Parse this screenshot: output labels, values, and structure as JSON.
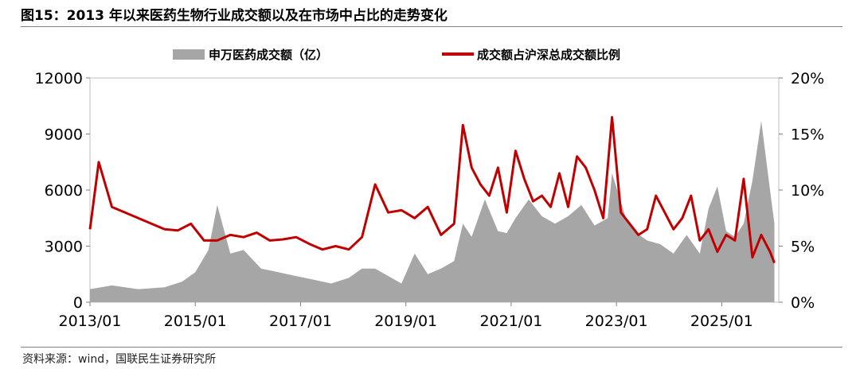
{
  "header": {
    "title": "图15：2013 年以来医药生物行业成交额以及在市场中占比的走势变化"
  },
  "footer": {
    "source": "资料来源：wind，国联民生证券研究所"
  },
  "chart_data": {
    "type": "bar+line",
    "title": "图15：2013 年以来医药生物行业成交额以及在市场中占比的走势变化",
    "legend_position": "top",
    "x_tick_labels": [
      "2013/01",
      "2015/01",
      "2017/01",
      "2019/01",
      "2021/01",
      "2023/01",
      "2025/01"
    ],
    "x_range": [
      "2013/01",
      "2026/02"
    ],
    "y_left": {
      "ticks": [
        "0",
        "3000",
        "6000",
        "9000",
        "12000"
      ],
      "range": [
        0,
        12000
      ]
    },
    "y_right": {
      "ticks": [
        "0%",
        "5%",
        "10%",
        "15%",
        "20%"
      ],
      "range": [
        0,
        20
      ]
    },
    "grid": false,
    "series": [
      {
        "name": "申万医药成交额（亿）",
        "kind": "area",
        "axis": "left",
        "color": "#a6a6a6",
        "x": [
          "2013/01",
          "2013/06",
          "2013/12",
          "2014/06",
          "2014/10",
          "2015/01",
          "2015/04",
          "2015/06",
          "2015/09",
          "2015/12",
          "2016/04",
          "2016/08",
          "2016/12",
          "2017/04",
          "2017/08",
          "2017/12",
          "2018/03",
          "2018/06",
          "2018/09",
          "2018/12",
          "2019/03",
          "2019/06",
          "2019/09",
          "2019/12",
          "2020/02",
          "2020/04",
          "2020/07",
          "2020/10",
          "2020/12",
          "2021/02",
          "2021/05",
          "2021/08",
          "2021/11",
          "2022/02",
          "2022/05",
          "2022/08",
          "2022/11",
          "2022/12",
          "2023/03",
          "2023/05",
          "2023/08",
          "2023/11",
          "2024/02",
          "2024/05",
          "2024/08",
          "2024/10",
          "2024/12",
          "2025/02",
          "2025/04",
          "2025/06",
          "2025/08",
          "2025/10",
          "2025/12",
          "2026/01"
        ],
        "values": [
          700,
          900,
          700,
          800,
          1100,
          1600,
          2800,
          5200,
          2600,
          2800,
          1800,
          1600,
          1400,
          1200,
          1000,
          1300,
          1800,
          1800,
          1400,
          1000,
          2600,
          1500,
          1800,
          2200,
          4200,
          3500,
          5500,
          3800,
          3700,
          4500,
          5500,
          4600,
          4200,
          4600,
          5200,
          4100,
          4500,
          6900,
          4600,
          3800,
          3300,
          3100,
          2600,
          3600,
          2600,
          5000,
          6200,
          3800,
          3500,
          4200,
          6500,
          9700,
          6000,
          4200
        ]
      },
      {
        "name": "成交额占沪深总成交额比例",
        "kind": "line",
        "axis": "right",
        "color": "#c00000",
        "x": [
          "2013/01",
          "2013/03",
          "2013/06",
          "2013/09",
          "2013/12",
          "2014/03",
          "2014/06",
          "2014/09",
          "2014/12",
          "2015/03",
          "2015/06",
          "2015/09",
          "2015/12",
          "2016/03",
          "2016/06",
          "2016/09",
          "2016/12",
          "2017/03",
          "2017/06",
          "2017/09",
          "2017/12",
          "2018/03",
          "2018/06",
          "2018/09",
          "2018/12",
          "2019/03",
          "2019/06",
          "2019/09",
          "2019/12",
          "2020/02",
          "2020/04",
          "2020/06",
          "2020/08",
          "2020/10",
          "2020/12",
          "2021/02",
          "2021/04",
          "2021/06",
          "2021/08",
          "2021/10",
          "2021/12",
          "2022/02",
          "2022/04",
          "2022/06",
          "2022/08",
          "2022/10",
          "2022/12",
          "2023/02",
          "2023/04",
          "2023/06",
          "2023/08",
          "2023/10",
          "2023/12",
          "2024/02",
          "2024/04",
          "2024/06",
          "2024/08",
          "2024/10",
          "2024/12",
          "2025/02",
          "2025/04",
          "2025/06",
          "2025/08",
          "2025/10",
          "2025/12",
          "2026/01"
        ],
        "values": [
          6.5,
          12.5,
          8.5,
          8.0,
          7.5,
          7.0,
          6.5,
          6.4,
          7.0,
          5.5,
          5.5,
          6.0,
          5.8,
          6.2,
          5.5,
          5.6,
          5.8,
          5.2,
          4.7,
          5.0,
          4.7,
          5.8,
          10.5,
          8.0,
          8.2,
          7.5,
          8.5,
          6.0,
          7.0,
          15.8,
          12.0,
          10.5,
          9.5,
          12.0,
          8.0,
          13.5,
          11.0,
          9.0,
          9.5,
          8.5,
          11.5,
          8.5,
          13.0,
          12.0,
          10.0,
          7.5,
          16.5,
          8.0,
          7.0,
          6.0,
          6.5,
          9.5,
          8.0,
          6.5,
          7.5,
          9.5,
          5.5,
          6.5,
          4.5,
          6.0,
          5.5,
          11.0,
          4.0,
          6.0,
          4.5,
          3.5
        ]
      }
    ]
  }
}
